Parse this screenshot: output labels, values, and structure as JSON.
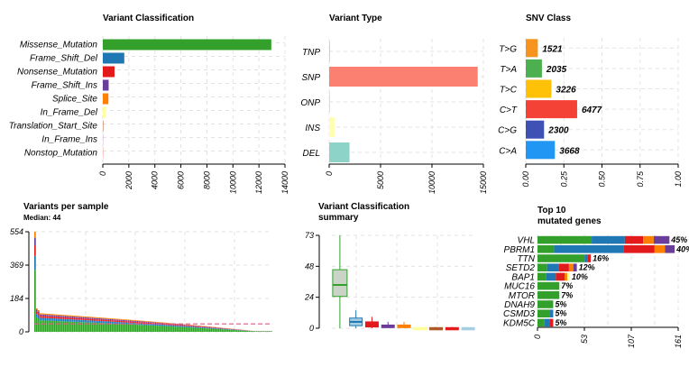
{
  "chart_data": [
    {
      "id": "variant_classification",
      "type": "bar",
      "orientation": "horizontal",
      "title": "Variant Classification",
      "categories": [
        "Missense_Mutation",
        "Frame_Shift_Del",
        "Nonsense_Mutation",
        "Frame_Shift_Ins",
        "Splice_Site",
        "In_Frame_Del",
        "Translation_Start_Site",
        "In_Frame_Ins",
        "Nonstop_Mutation"
      ],
      "values": [
        12950,
        1650,
        900,
        450,
        430,
        200,
        25,
        15,
        10
      ],
      "colors": [
        "#33a02c",
        "#1f78b4",
        "#e31a1c",
        "#6a3d9a",
        "#ff7f00",
        "#ffff99",
        "#b15928",
        "#cab2d6",
        "#fb9a99"
      ],
      "xlim": [
        0,
        14000
      ],
      "ticks": [
        "0",
        "2000",
        "4000",
        "6000",
        "8000",
        "10000",
        "12000",
        "14000"
      ],
      "grid": true
    },
    {
      "id": "variant_type",
      "type": "bar",
      "orientation": "horizontal",
      "title": "Variant Type",
      "categories": [
        "TNP",
        "SNP",
        "ONP",
        "INS",
        "DEL"
      ],
      "values": [
        3,
        14450,
        2,
        520,
        1980
      ],
      "colors": [
        "#80b1d3",
        "#fb8072",
        "#bebada",
        "#ffffb3",
        "#8dd3c7"
      ],
      "xlim": [
        0,
        15000
      ],
      "ticks": [
        "0",
        "5000",
        "10000",
        "15000"
      ],
      "grid": true
    },
    {
      "id": "snv_class",
      "type": "bar",
      "orientation": "horizontal",
      "title": "SNV Class",
      "categories": [
        "T>G",
        "T>A",
        "T>C",
        "C>T",
        "C>G",
        "C>A"
      ],
      "values": [
        1521,
        2035,
        3226,
        6477,
        2300,
        3668
      ],
      "labels": [
        "1521",
        "2035",
        "3226",
        "6477",
        "2300",
        "3668"
      ],
      "fractions": [
        0.079,
        0.106,
        0.168,
        0.337,
        0.12,
        0.191
      ],
      "colors": [
        "#f7941d",
        "#4caf50",
        "#ffc107",
        "#f44336",
        "#3f51b5",
        "#2196f3"
      ],
      "xlim": [
        0,
        1
      ],
      "ticks": [
        "0.00",
        "0.25",
        "0.50",
        "0.75",
        "1.00"
      ],
      "grid": true
    },
    {
      "id": "variants_per_sample",
      "type": "bar",
      "stacked": true,
      "title": "Variants per sample",
      "subtitle": "Median: 44",
      "ylim": [
        0,
        554
      ],
      "ticks": [
        "0",
        "184",
        "369",
        "554"
      ],
      "median": 44,
      "grid": true
    },
    {
      "id": "variant_classification_summary",
      "type": "boxplot",
      "title": "Variant Classification",
      "title2": "summary",
      "ylim": [
        0,
        73
      ],
      "ticks": [
        "0",
        "24",
        "48",
        "73"
      ],
      "boxes": [
        {
          "color": "#33a02c",
          "fill": "#c9d4c6",
          "min": 0,
          "q1": 25,
          "median": 34,
          "q3": 46,
          "max": 73
        },
        {
          "color": "#1f78b4",
          "fill": "#a6cee3",
          "min": 0,
          "q1": 2,
          "median": 5,
          "q3": 8,
          "max": 14
        },
        {
          "color": "#e31a1c",
          "fill": "#e31a1c",
          "min": 0,
          "q1": 1,
          "median": 3,
          "q3": 5,
          "max": 9
        },
        {
          "color": "#6a3d9a",
          "fill": "#6a3d9a",
          "min": 0,
          "q1": 0.5,
          "median": 1,
          "q3": 2.5,
          "max": 5
        },
        {
          "color": "#ff7f00",
          "fill": "#ff7f00",
          "min": 0,
          "q1": 0.5,
          "median": 1,
          "q3": 2.5,
          "max": 5
        },
        {
          "color": "#ffff99",
          "fill": "#ffff99",
          "min": 0,
          "q1": 0,
          "median": 0,
          "q3": 0.5,
          "max": 1
        },
        {
          "color": "#b15928",
          "fill": "#b15928",
          "min": 0,
          "q1": 0,
          "median": 0,
          "q3": 0.5,
          "max": 1
        },
        {
          "color": "#e31a1c",
          "fill": "#e31a1c",
          "min": 0,
          "q1": 0,
          "median": 0,
          "q3": 0.5,
          "max": 1
        },
        {
          "color": "#a6cee3",
          "fill": "#a6cee3",
          "min": 0,
          "q1": 0,
          "median": 0,
          "q3": 0.5,
          "max": 1
        }
      ],
      "grid": true
    },
    {
      "id": "top10_mutated_genes",
      "type": "bar",
      "orientation": "horizontal",
      "stacked": true,
      "title": "Top 10",
      "title2": "mutated genes",
      "categories": [
        "VHL",
        "PBRM1",
        "TTN",
        "SETD2",
        "BAP1",
        "MUC16",
        "MTOR",
        "DNAH9",
        "CSMD3",
        "KDM5C"
      ],
      "labels": [
        "45%",
        "40%",
        "16%",
        "12%",
        "10%",
        "7%",
        "7%",
        "5%",
        "5%",
        "5%"
      ],
      "segments": [
        [
          [
            "#33a02c",
            62
          ],
          [
            "#1f78b4",
            38
          ],
          [
            "#e31a1c",
            21
          ],
          [
            "#ff7f00",
            12
          ],
          [
            "#6a3d9a",
            18
          ]
        ],
        [
          [
            "#33a02c",
            19
          ],
          [
            "#1f78b4",
            80
          ],
          [
            "#e31a1c",
            35
          ],
          [
            "#ff7f00",
            12
          ],
          [
            "#6a3d9a",
            11
          ]
        ],
        [
          [
            "#33a02c",
            54
          ],
          [
            "#1f78b4",
            3
          ],
          [
            "#e31a1c",
            4
          ]
        ],
        [
          [
            "#33a02c",
            11
          ],
          [
            "#1f78b4",
            13
          ],
          [
            "#e31a1c",
            12
          ],
          [
            "#ff7f00",
            5
          ],
          [
            "#6a3d9a",
            4
          ]
        ],
        [
          [
            "#33a02c",
            10
          ],
          [
            "#1f78b4",
            11
          ],
          [
            "#e31a1c",
            10
          ],
          [
            "#ff7f00",
            3
          ],
          [
            "#ffff99",
            3
          ]
        ],
        [
          [
            "#33a02c",
            25
          ]
        ],
        [
          [
            "#33a02c",
            25
          ]
        ],
        [
          [
            "#33a02c",
            18
          ]
        ],
        [
          [
            "#33a02c",
            14
          ],
          [
            "#1f78b4",
            4
          ]
        ],
        [
          [
            "#33a02c",
            8
          ],
          [
            "#1f78b4",
            6
          ],
          [
            "#e31a1c",
            4
          ]
        ]
      ],
      "xlim": [
        0,
        161
      ],
      "ticks": [
        "0",
        "53",
        "107",
        "161"
      ],
      "grid": true
    }
  ]
}
